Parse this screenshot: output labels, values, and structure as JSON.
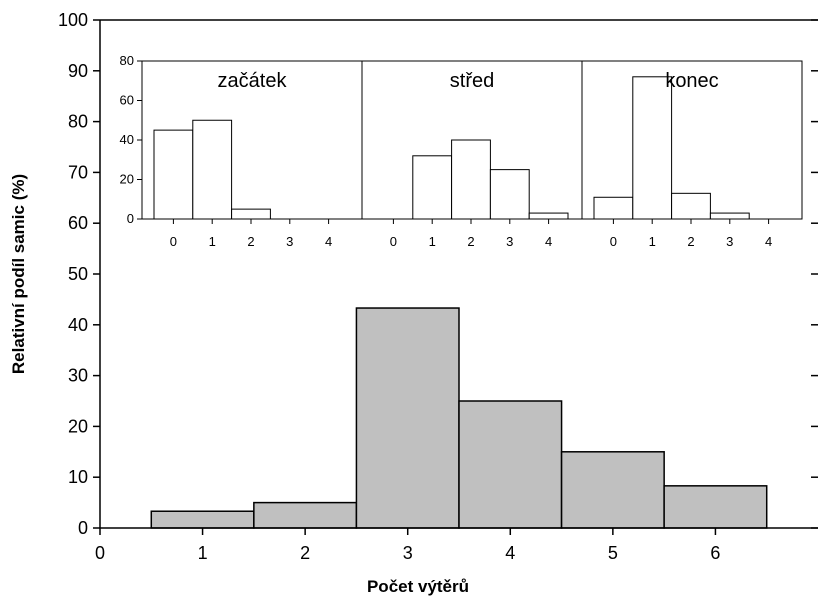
{
  "chart_data": [
    {
      "type": "bar",
      "title": "",
      "xlabel": "Počet výtěrů",
      "ylabel": "Relativní podíl samic (%)",
      "x": [
        1,
        2,
        3,
        4,
        5,
        6
      ],
      "values": [
        3.3,
        5,
        43.3,
        25,
        15,
        8.3
      ],
      "xlim": [
        0,
        7
      ],
      "ylim": [
        0,
        100
      ],
      "xticks": [
        0,
        1,
        2,
        3,
        4,
        5,
        6
      ],
      "yticks": [
        0,
        10,
        20,
        30,
        40,
        50,
        60,
        70,
        80,
        90,
        100
      ],
      "bar_color": "#c0c0c0",
      "grid": false
    },
    {
      "type": "bar",
      "title": "začátek",
      "categories": [
        "0",
        "1",
        "2",
        "3",
        "4"
      ],
      "values": [
        45,
        50,
        5,
        0,
        0
      ],
      "ylim": [
        0,
        80
      ],
      "yticks": [
        0,
        20,
        40,
        60,
        80
      ],
      "bar_color": "#ffffff"
    },
    {
      "type": "bar",
      "title": "střed",
      "categories": [
        "0",
        "1",
        "2",
        "3",
        "4"
      ],
      "values": [
        0,
        32,
        40,
        25,
        3
      ],
      "ylim": [
        0,
        80
      ],
      "bar_color": "#ffffff"
    },
    {
      "type": "bar",
      "title": "konec",
      "categories": [
        "0",
        "1",
        "2",
        "3",
        "4"
      ],
      "values": [
        11,
        72,
        13,
        3,
        0
      ],
      "ylim": [
        0,
        80
      ],
      "bar_color": "#ffffff"
    }
  ]
}
